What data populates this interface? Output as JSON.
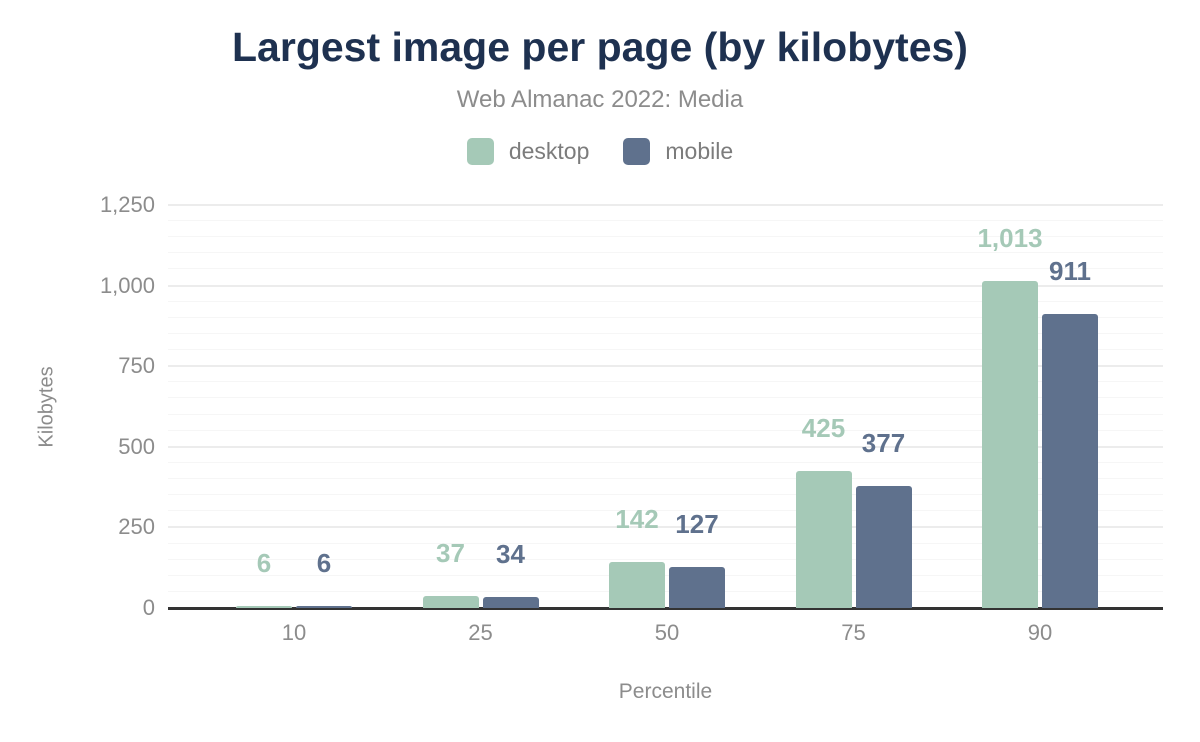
{
  "chart_data": {
    "type": "bar",
    "title": "Largest image per page (by kilobytes)",
    "subtitle": "Web Almanac 2022: Media",
    "xlabel": "Percentile",
    "ylabel": "Kilobytes",
    "categories": [
      "10",
      "25",
      "50",
      "75",
      "90"
    ],
    "series": [
      {
        "name": "desktop",
        "color": "#a5c9b7",
        "values": [
          6,
          37,
          142,
          425,
          1013
        ],
        "value_labels": [
          "6",
          "37",
          "142",
          "425",
          "1,013"
        ]
      },
      {
        "name": "mobile",
        "color": "#5f718d",
        "values": [
          6,
          34,
          127,
          377,
          911
        ],
        "value_labels": [
          "6",
          "34",
          "127",
          "377",
          "911"
        ]
      }
    ],
    "ylim": [
      0,
      1250
    ],
    "yticks": [
      0,
      250,
      500,
      750,
      1000,
      1250
    ],
    "ytick_labels": [
      "0",
      "250",
      "500",
      "750",
      "1,000",
      "1,250"
    ],
    "minor_tick_interval": 50,
    "grid": true,
    "legend_position": "top"
  },
  "colors": {
    "title": "#1e3150",
    "subtitle": "#8c8c8c",
    "axis_text": "#8c8c8c",
    "baseline": "#333333",
    "grid_major": "#ececec",
    "grid_minor": "#f6f6f6",
    "background": "#ffffff"
  }
}
